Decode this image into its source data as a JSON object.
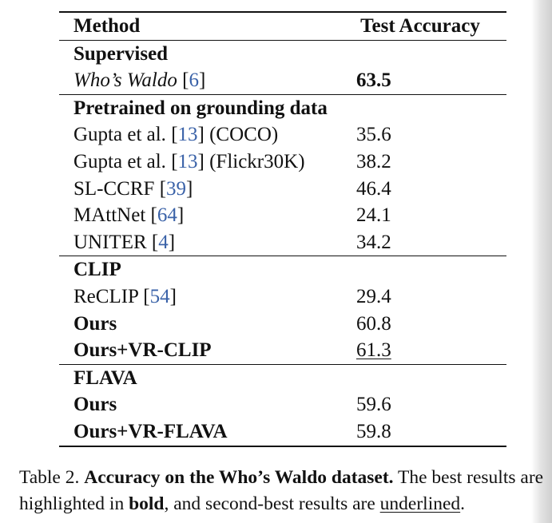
{
  "table": {
    "columns": {
      "method": "Method",
      "accuracy": "Test Accuracy"
    },
    "groups": [
      {
        "label": "Supervised",
        "rows": [
          {
            "name": "Who’s Waldo",
            "cite": "6",
            "suffix": "",
            "value": "63.5",
            "name_style": "italic",
            "value_style": "bold"
          }
        ]
      },
      {
        "label": "Pretrained on grounding data",
        "rows": [
          {
            "name": "Gupta et al.",
            "cite": "13",
            "suffix": " (COCO)",
            "value": "35.6",
            "name_style": "normal",
            "value_style": "normal"
          },
          {
            "name": "Gupta et al.",
            "cite": "13",
            "suffix": " (Flickr30K)",
            "value": "38.2",
            "name_style": "normal",
            "value_style": "normal"
          },
          {
            "name": "SL-CCRF",
            "cite": "39",
            "suffix": "",
            "value": "46.4",
            "name_style": "normal",
            "value_style": "normal"
          },
          {
            "name": "MAttNet",
            "cite": "64",
            "suffix": "",
            "value": "24.1",
            "name_style": "normal",
            "value_style": "normal"
          },
          {
            "name": "UNITER",
            "cite": "4",
            "suffix": "",
            "value": "34.2",
            "name_style": "normal",
            "value_style": "normal"
          }
        ]
      },
      {
        "label": "CLIP",
        "rows": [
          {
            "name": "ReCLIP",
            "cite": "54",
            "suffix": "",
            "value": "29.4",
            "name_style": "normal",
            "value_style": "normal"
          },
          {
            "name": "Ours",
            "cite": "",
            "suffix": "",
            "value": "60.8",
            "name_style": "bold",
            "value_style": "normal"
          },
          {
            "name": "Ours+VR-CLIP",
            "cite": "",
            "suffix": "",
            "value": "61.3",
            "name_style": "bold",
            "value_style": "underline"
          }
        ]
      },
      {
        "label": "FLAVA",
        "rows": [
          {
            "name": "Ours",
            "cite": "",
            "suffix": "",
            "value": "59.6",
            "name_style": "bold",
            "value_style": "normal"
          },
          {
            "name": "Ours+VR-FLAVA",
            "cite": "",
            "suffix": "",
            "value": "59.8",
            "name_style": "bold",
            "value_style": "normal"
          }
        ]
      }
    ]
  },
  "caption": {
    "prefix": "Table 2. ",
    "bold_title": "Accuracy on the Who’s Waldo dataset.",
    "text_1": " The best results are highlighted in ",
    "bold_word": "bold",
    "text_2": ", and second-best results are ",
    "underlined_word": "underlined",
    "text_3": "."
  }
}
